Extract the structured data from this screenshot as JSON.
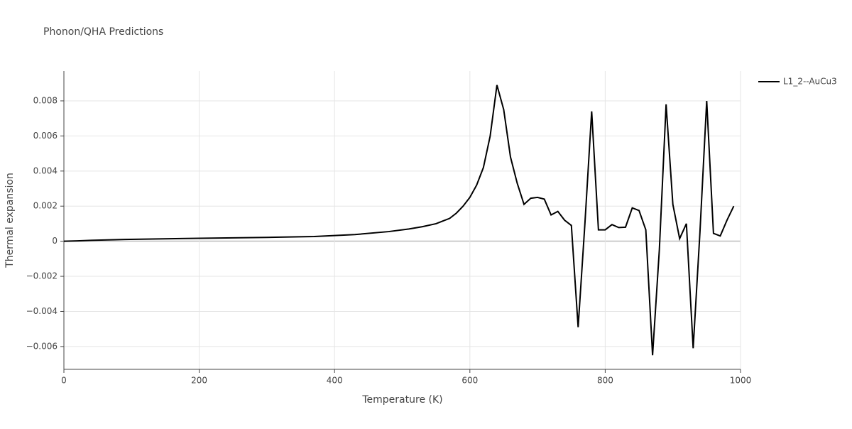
{
  "chart_data": {
    "type": "line",
    "title": "Phonon/QHA Predictions",
    "x_label": "Temperature (K)",
    "y_label": "Thermal expansion",
    "x": [
      0,
      20,
      40,
      90,
      200,
      300,
      370,
      430,
      480,
      510,
      530,
      550,
      560,
      570,
      580,
      590,
      600,
      610,
      620,
      630,
      640,
      650,
      660,
      670,
      680,
      690,
      700,
      710,
      720,
      730,
      740,
      750,
      760,
      770,
      780,
      790,
      800,
      810,
      820,
      830,
      840,
      850,
      860,
      870,
      880,
      890,
      900,
      910,
      920,
      930,
      940,
      950,
      960,
      970,
      980,
      990
    ],
    "series": [
      {
        "name": "L1_2--AuCu3",
        "color": "#000000",
        "values": [
          0,
          2e-05,
          5e-05,
          0.0001,
          0.00017,
          0.00022,
          0.00027,
          0.00038,
          0.00055,
          0.0007,
          0.00083,
          0.001,
          0.00115,
          0.0013,
          0.0016,
          0.002,
          0.0025,
          0.0032,
          0.0042,
          0.006,
          0.0089,
          0.0075,
          0.0048,
          0.0033,
          0.0021,
          0.00245,
          0.0025,
          0.0024,
          0.0015,
          0.0017,
          0.0012,
          0.0009,
          -0.0049,
          0.001,
          0.0074,
          0.00065,
          0.00065,
          0.00095,
          0.00078,
          0.0008,
          0.0019,
          0.00175,
          0.00065,
          -0.0065,
          -0.0005,
          0.0078,
          0.0021,
          0.00015,
          0.001,
          -0.0061,
          0.0005,
          0.008,
          0.00045,
          0.0003,
          0.0012,
          0.002
        ]
      }
    ],
    "xlim": [
      0,
      1000
    ],
    "xticks": [
      0,
      200,
      400,
      600,
      800,
      1000
    ],
    "ylim": [
      -0.0073,
      0.0097
    ],
    "yticks": [
      {
        "value": -0.006,
        "label": "−0.006"
      },
      {
        "value": -0.004,
        "label": "−0.004"
      },
      {
        "value": -0.002,
        "label": "−0.002"
      },
      0,
      0.002,
      0.004,
      0.006,
      0.008
    ],
    "grid": true,
    "legend": "right"
  }
}
